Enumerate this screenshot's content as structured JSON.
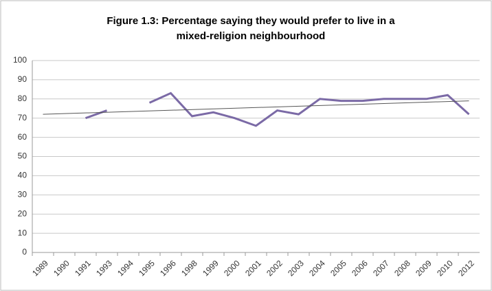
{
  "chart_data": {
    "type": "line",
    "title": "Figure 1.3:  Percentage saying they would prefer to live in a mixed-religion neighbourhood",
    "categories": [
      "1989",
      "1990",
      "1991",
      "1993",
      "1994",
      "1995",
      "1996",
      "1998",
      "1999",
      "2000",
      "2001",
      "2002",
      "2003",
      "2004",
      "2005",
      "2006",
      "2007",
      "2008",
      "2009",
      "2010",
      "2012"
    ],
    "series": [
      {
        "color": "#7b6aa6",
        "values": [
          null,
          null,
          70,
          74,
          null,
          78,
          83,
          71,
          73,
          70,
          66,
          74,
          72,
          80,
          79,
          79,
          80,
          80,
          80,
          82,
          72
        ]
      }
    ],
    "trendline": {
      "color": "#555555",
      "values": [
        72,
        79
      ]
    },
    "ylim": [
      0,
      100
    ],
    "yticks": [
      0,
      10,
      20,
      30,
      40,
      50,
      60,
      70,
      80,
      90,
      100
    ],
    "grid": true
  }
}
